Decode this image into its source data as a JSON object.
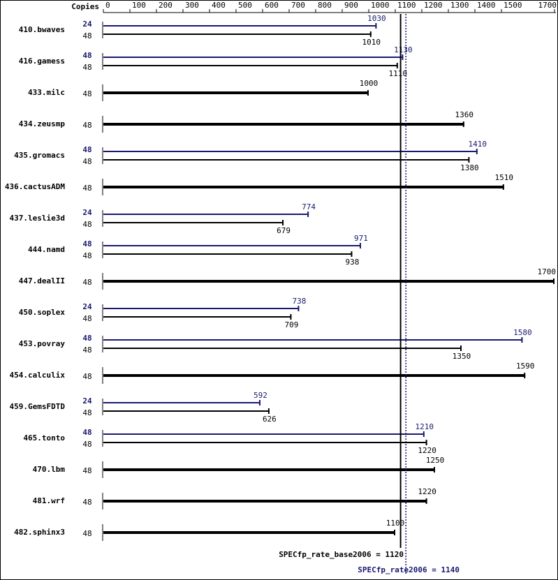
{
  "chart_data": {
    "type": "spec-bar",
    "copies_header": "Copies",
    "categories": [
      "410.bwaves",
      "416.gamess",
      "433.milc",
      "434.zeusmp",
      "435.gromacs",
      "436.cactusADM",
      "437.leslie3d",
      "444.namd",
      "447.dealII",
      "450.soplex",
      "453.povray",
      "454.calculix",
      "459.GemsFDTD",
      "465.tonto",
      "470.lbm",
      "481.wrf",
      "482.sphinx3"
    ],
    "base_copies": [
      48,
      48,
      48,
      48,
      48,
      48,
      48,
      48,
      48,
      48,
      48,
      48,
      48,
      48,
      48,
      48,
      48
    ],
    "base_values": [
      1010,
      1110,
      1000,
      1360,
      1380,
      1510,
      679,
      938,
      1700,
      709,
      1350,
      1590,
      626,
      1220,
      1250,
      1220,
      1100
    ],
    "base_color": "#000000",
    "peak_copies": [
      24,
      48,
      null,
      null,
      48,
      null,
      24,
      48,
      null,
      24,
      48,
      null,
      24,
      48,
      null,
      null,
      null
    ],
    "peak_values": [
      1030,
      1130,
      null,
      null,
      1410,
      null,
      774,
      971,
      null,
      738,
      1580,
      null,
      592,
      1210,
      null,
      null,
      null
    ],
    "peak_color": "#191970",
    "xlim": [
      0,
      1700
    ],
    "xticks": [
      0,
      100,
      200,
      300,
      400,
      500,
      600,
      700,
      800,
      900,
      1000,
      1100,
      1200,
      1300,
      1400,
      1500,
      1700
    ],
    "reference_lines": [
      {
        "label": "SPECfp_rate_base2006 = 1120",
        "value": 1120,
        "color": "#000000",
        "style": "solid"
      },
      {
        "label": "SPECfp_rate2006 = 1140",
        "value": 1140,
        "color": "#191970",
        "style": "dotted"
      }
    ]
  }
}
